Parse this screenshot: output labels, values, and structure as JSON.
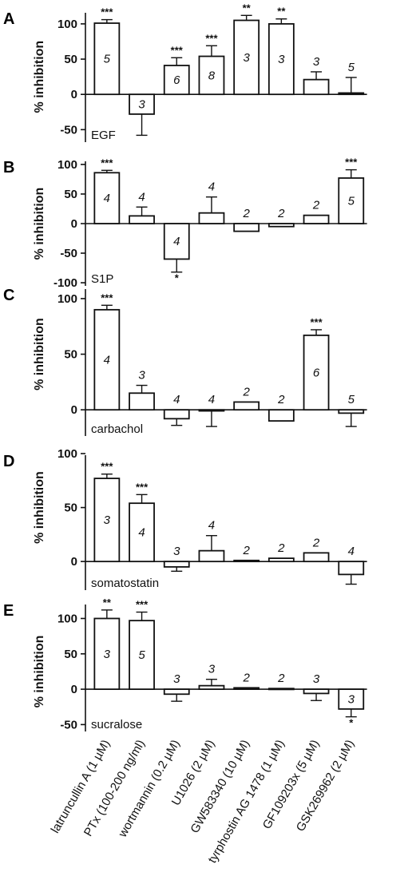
{
  "figure": {
    "categories": [
      "latruncullin A (1 µM)",
      "PTx (100-200 ng/ml)",
      "wortmannin (0.2 µM)",
      "U1026 (2 µM)",
      "GW583340 (10 µM)",
      "tyrphostin AG 1478 (1 µM)",
      "GF109203x (5 µM)",
      "GSK269962 (2 µM)"
    ]
  },
  "chart_data": [
    {
      "type": "bar",
      "panel_label": "A",
      "annotation": "EGF",
      "ylabel": "% inhibition",
      "ylim": [
        -70,
        118
      ],
      "yticks": [
        -50,
        0,
        50,
        100
      ],
      "values": [
        101,
        -28,
        41,
        54,
        105,
        100,
        21,
        2
      ],
      "errors": [
        5,
        30,
        11,
        15,
        7,
        7,
        11,
        22
      ],
      "n": [
        "5",
        "3",
        "6",
        "8",
        "3",
        "3",
        "3",
        "5"
      ],
      "significance": [
        "***",
        "",
        "***",
        "***",
        "**",
        "**",
        "",
        ""
      ]
    },
    {
      "type": "bar",
      "panel_label": "B",
      "annotation": "S1P",
      "ylabel": "% inhibition",
      "ylim": [
        -108,
        108
      ],
      "yticks": [
        -100,
        -50,
        0,
        50,
        100
      ],
      "values": [
        86,
        13,
        -60,
        18,
        -13,
        -5,
        14,
        77
      ],
      "errors": [
        4,
        15,
        22,
        27,
        0,
        0,
        0,
        14
      ],
      "n": [
        "4",
        "4",
        "4",
        "4",
        "2",
        "2",
        "2",
        "5"
      ],
      "significance": [
        "***",
        "",
        "*",
        "",
        "",
        "",
        "",
        "***"
      ]
    },
    {
      "type": "bar",
      "panel_label": "C",
      "annotation": "carbachol",
      "ylabel": "% inhibition",
      "ylim": [
        -25,
        110
      ],
      "yticks": [
        0,
        50,
        100
      ],
      "values": [
        90,
        15,
        -8,
        -1,
        7,
        -10,
        67,
        -3
      ],
      "errors": [
        4,
        7,
        6,
        14,
        0,
        0,
        5,
        12
      ],
      "n": [
        "4",
        "3",
        "4",
        "4",
        "2",
        "2",
        "6",
        "5"
      ],
      "significance": [
        "***",
        "",
        "",
        "",
        "",
        "",
        "***",
        ""
      ]
    },
    {
      "type": "bar",
      "panel_label": "D",
      "annotation": "somatostatin",
      "ylabel": "% inhibition",
      "ylim": [
        -28,
        100
      ],
      "yticks": [
        0,
        50,
        100
      ],
      "values": [
        77,
        54,
        -5,
        10,
        1,
        3,
        8,
        -12
      ],
      "errors": [
        4,
        8,
        4,
        14,
        0,
        0,
        0,
        9
      ],
      "n": [
        "3",
        "4",
        "3",
        "4",
        "2",
        "2",
        "2",
        "4"
      ],
      "significance": [
        "***",
        "***",
        "",
        "",
        "",
        "",
        "",
        ""
      ]
    },
    {
      "type": "bar",
      "panel_label": "E",
      "annotation": "sucralose",
      "ylabel": "% inhibition",
      "ylim": [
        -62,
        122
      ],
      "yticks": [
        -50,
        0,
        50,
        100
      ],
      "values": [
        100,
        97,
        -7,
        5,
        2,
        1,
        -6,
        -28
      ],
      "errors": [
        12,
        12,
        10,
        9,
        0,
        0,
        10,
        11
      ],
      "n": [
        "3",
        "5",
        "3",
        "3",
        "2",
        "2",
        "3",
        "3"
      ],
      "significance": [
        "**",
        "***",
        "",
        "",
        "",
        "",
        "",
        "*"
      ]
    }
  ]
}
